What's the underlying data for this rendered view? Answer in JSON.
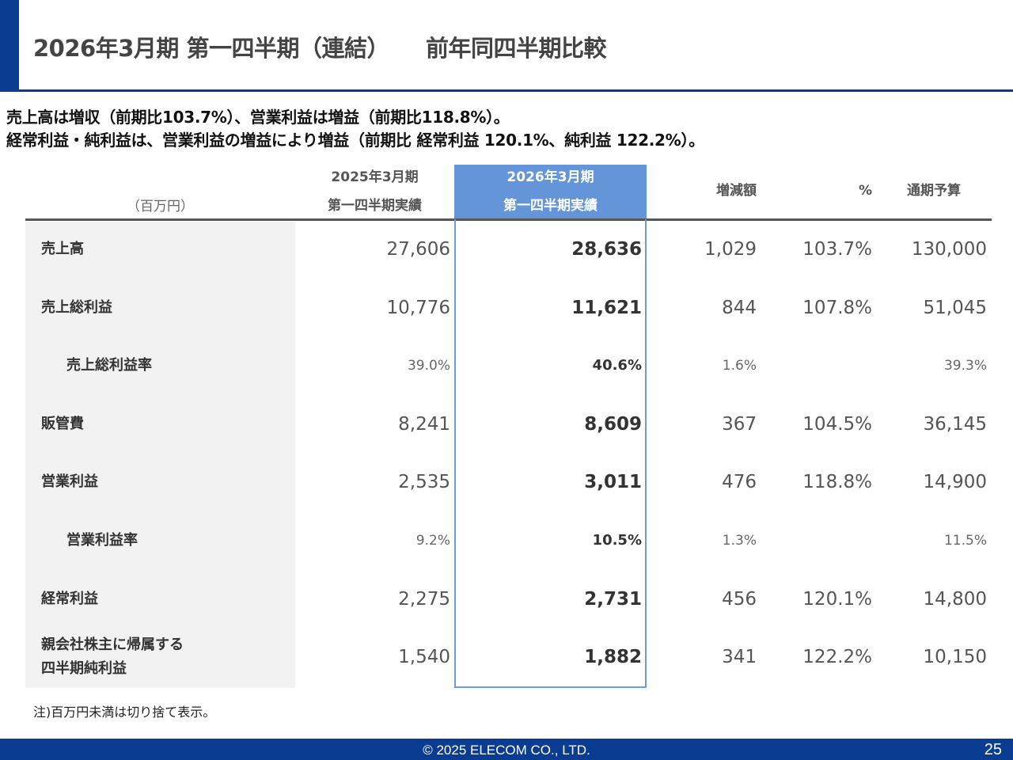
{
  "header": {
    "title": "2026年3月期 第一四半期（連結）",
    "subtitle": "前年同四半期比較"
  },
  "summary": {
    "line1": "売上高は増収（前期比103.7%）、営業利益は増益（前期比118.8%）。",
    "line2": "経常利益・純利益は、営業利益の増益により増益（前期比 経常利益 120.1%、純利益 122.2%）。"
  },
  "table": {
    "unit_label": "（百万円）",
    "columns": {
      "prev_line1": "2025年3月期",
      "prev_line2": "第一四半期実績",
      "curr_line1": "2026年3月期",
      "curr_line2": "第一四半期実績",
      "diff": "増減額",
      "pct": "%",
      "budget": "通期予算"
    },
    "rows": [
      {
        "label": "売上高",
        "prev": "27,606",
        "curr": "28,636",
        "diff": "1,029",
        "pct": "103.7%",
        "budget": "130,000"
      },
      {
        "label": "売上総利益",
        "prev": "10,776",
        "curr": "11,621",
        "diff": "844",
        "pct": "107.8%",
        "budget": "51,045"
      },
      {
        "label": "売上総利益率",
        "prev": "39.0%",
        "curr": "40.6%",
        "diff": "1.6%",
        "pct": "",
        "budget": "39.3%"
      },
      {
        "label": "販管費",
        "prev": "8,241",
        "curr": "8,609",
        "diff": "367",
        "pct": "104.5%",
        "budget": "36,145"
      },
      {
        "label": "営業利益",
        "prev": "2,535",
        "curr": "3,011",
        "diff": "476",
        "pct": "118.8%",
        "budget": "14,900"
      },
      {
        "label": "営業利益率",
        "prev": "9.2%",
        "curr": "10.5%",
        "diff": "1.3%",
        "pct": "",
        "budget": "11.5%"
      },
      {
        "label": "経常利益",
        "prev": "2,275",
        "curr": "2,731",
        "diff": "456",
        "pct": "120.1%",
        "budget": "14,800"
      },
      {
        "label_line1": "親会社株主に帰属する",
        "label_line2": "四半期純利益",
        "prev": "1,540",
        "curr": "1,882",
        "diff": "341",
        "pct": "122.2%",
        "budget": "10,150"
      }
    ]
  },
  "note": "注)百万円未満は切り捨て表示。",
  "footer": {
    "copyright": "© 2025 ELECOM CO., LTD.",
    "page_number": "25"
  },
  "colors": {
    "brand": "#0a3d91",
    "highlight": "#6495d8"
  }
}
